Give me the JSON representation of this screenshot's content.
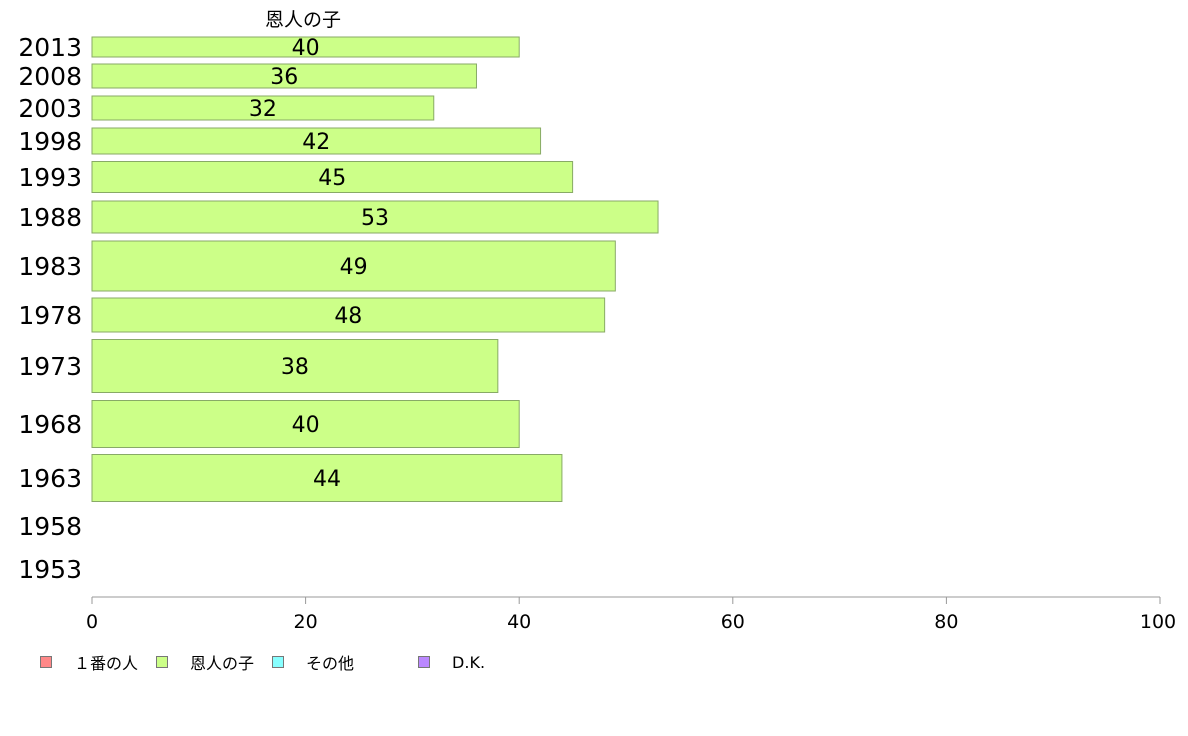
{
  "chart_data": {
    "type": "bar",
    "orientation": "horizontal",
    "title": "恩人の子",
    "categories": [
      "2013",
      "2008",
      "2003",
      "1998",
      "1993",
      "1988",
      "1983",
      "1978",
      "1973",
      "1968",
      "1963",
      "1958",
      "1953"
    ],
    "series": [
      {
        "name": "恩人の子",
        "values": [
          40,
          36,
          32,
          42,
          45,
          53,
          49,
          48,
          38,
          40,
          44,
          null,
          null
        ],
        "color": "#ccff88"
      }
    ],
    "data_labels": [
      "40",
      "36",
      "32",
      "42",
      "45",
      "53",
      "49",
      "48",
      "38",
      "40",
      "44",
      "",
      ""
    ],
    "xlim": [
      0,
      100
    ],
    "xticks": [
      0,
      20,
      40,
      60,
      80,
      100
    ],
    "grid": false,
    "legend": {
      "placement": "bottom-left",
      "items": [
        {
          "label": "１番の人",
          "color": "#ff8888"
        },
        {
          "label": "恩人の子",
          "color": "#ccff88"
        },
        {
          "label": "その他",
          "color": "#88ffff"
        },
        {
          "label": "D.K.",
          "color": "#bb88ff"
        }
      ]
    }
  }
}
